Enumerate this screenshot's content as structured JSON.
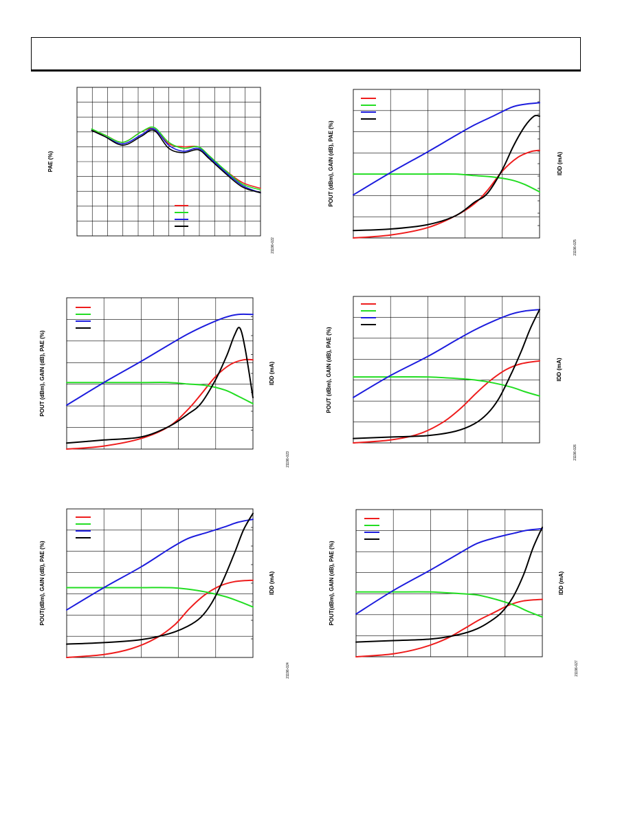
{
  "colors": {
    "red": "#ee1c1c",
    "green": "#22dd22",
    "blue": "#1c1cdd",
    "black": "#000000",
    "grid": "#000000"
  },
  "chart_data": [
    {
      "type": "line",
      "ylabel": "PAE (%)",
      "figure_id": "21196-022",
      "grid": true,
      "legend_placement": "bottom-right",
      "legend_colors": [
        "red",
        "green",
        "blue",
        "black"
      ],
      "xlim": [
        0,
        1
      ],
      "ylim": [
        0,
        1
      ],
      "series": [
        {
          "color": "red",
          "x": [
            0.08,
            0.15,
            0.25,
            0.35,
            0.42,
            0.5,
            0.58,
            0.66,
            0.72,
            0.8,
            0.9,
            1.0
          ],
          "y": [
            0.71,
            0.68,
            0.63,
            0.7,
            0.72,
            0.62,
            0.6,
            0.6,
            0.54,
            0.45,
            0.36,
            0.32
          ]
        },
        {
          "color": "green",
          "x": [
            0.08,
            0.15,
            0.25,
            0.35,
            0.42,
            0.5,
            0.58,
            0.66,
            0.72,
            0.8,
            0.9,
            1.0
          ],
          "y": [
            0.72,
            0.68,
            0.63,
            0.7,
            0.73,
            0.63,
            0.59,
            0.6,
            0.54,
            0.45,
            0.35,
            0.31
          ]
        },
        {
          "color": "blue",
          "x": [
            0.08,
            0.15,
            0.25,
            0.35,
            0.42,
            0.5,
            0.58,
            0.66,
            0.72,
            0.8,
            0.9,
            1.0
          ],
          "y": [
            0.71,
            0.67,
            0.62,
            0.68,
            0.72,
            0.61,
            0.57,
            0.59,
            0.53,
            0.44,
            0.34,
            0.29
          ]
        },
        {
          "color": "black",
          "x": [
            0.08,
            0.15,
            0.25,
            0.35,
            0.42,
            0.5,
            0.58,
            0.66,
            0.72,
            0.8,
            0.9,
            1.0
          ],
          "y": [
            0.71,
            0.67,
            0.61,
            0.67,
            0.71,
            0.59,
            0.56,
            0.58,
            0.52,
            0.43,
            0.33,
            0.29
          ]
        }
      ]
    },
    {
      "type": "line",
      "ylabel": "POUT (dBm), GAIN (dB), PAE (%)",
      "y2label": "IDD (mA)",
      "figure_id": "21196-025",
      "grid": true,
      "legend_placement": "top-left",
      "legend_colors": [
        "red",
        "green",
        "blue",
        "black"
      ],
      "xlim": [
        0,
        1
      ],
      "ylim": [
        0,
        1
      ],
      "series": [
        {
          "color": "red",
          "x": [
            0,
            0.2,
            0.4,
            0.55,
            0.65,
            0.72,
            0.8,
            0.88,
            0.95,
            1.0
          ],
          "y": [
            0.0,
            0.02,
            0.07,
            0.15,
            0.23,
            0.32,
            0.45,
            0.54,
            0.58,
            0.59
          ]
        },
        {
          "color": "green",
          "x": [
            0,
            0.2,
            0.4,
            0.55,
            0.65,
            0.75,
            0.85,
            0.92,
            1.0
          ],
          "y": [
            0.43,
            0.43,
            0.43,
            0.43,
            0.42,
            0.41,
            0.39,
            0.36,
            0.31
          ]
        },
        {
          "color": "blue",
          "x": [
            0,
            0.2,
            0.4,
            0.55,
            0.65,
            0.75,
            0.85,
            0.92,
            1.0
          ],
          "y": [
            0.29,
            0.44,
            0.58,
            0.69,
            0.76,
            0.82,
            0.88,
            0.9,
            0.91
          ]
        },
        {
          "color": "black",
          "x": [
            0,
            0.2,
            0.4,
            0.55,
            0.65,
            0.72,
            0.8,
            0.86,
            0.92,
            0.97,
            1.0
          ],
          "y": [
            0.05,
            0.06,
            0.09,
            0.15,
            0.24,
            0.3,
            0.46,
            0.62,
            0.75,
            0.82,
            0.82
          ]
        }
      ]
    },
    {
      "type": "line",
      "ylabel": "POUT (dBm), GAIN (dB), PAE (%)",
      "y2label": "IDD (mA)",
      "figure_id": "21196-023",
      "grid": true,
      "legend_placement": "top-left",
      "legend_colors": [
        "red",
        "green",
        "blue",
        "black"
      ],
      "xlim": [
        0,
        1
      ],
      "ylim": [
        0,
        1
      ],
      "series": [
        {
          "color": "red",
          "x": [
            0,
            0.2,
            0.4,
            0.55,
            0.65,
            0.72,
            0.8,
            0.88,
            0.95,
            1.0
          ],
          "y": [
            0.0,
            0.02,
            0.07,
            0.15,
            0.26,
            0.36,
            0.48,
            0.56,
            0.59,
            0.59
          ]
        },
        {
          "color": "green",
          "x": [
            0,
            0.2,
            0.4,
            0.55,
            0.65,
            0.75,
            0.85,
            0.92,
            1.0
          ],
          "y": [
            0.44,
            0.44,
            0.44,
            0.44,
            0.43,
            0.42,
            0.39,
            0.35,
            0.3
          ]
        },
        {
          "color": "blue",
          "x": [
            0,
            0.2,
            0.4,
            0.55,
            0.65,
            0.75,
            0.85,
            0.92,
            1.0
          ],
          "y": [
            0.29,
            0.44,
            0.58,
            0.69,
            0.76,
            0.82,
            0.87,
            0.89,
            0.89
          ]
        },
        {
          "color": "black",
          "x": [
            0,
            0.2,
            0.4,
            0.55,
            0.65,
            0.72,
            0.8,
            0.86,
            0.9,
            0.93,
            0.96,
            1.0
          ],
          "y": [
            0.04,
            0.06,
            0.08,
            0.15,
            0.23,
            0.3,
            0.46,
            0.62,
            0.75,
            0.8,
            0.65,
            0.34
          ]
        }
      ]
    },
    {
      "type": "line",
      "ylabel": "POUT (dBm), GAIN (dB), PAE (%)",
      "y2label": "IDD (mA)",
      "figure_id": "21196-026",
      "grid": true,
      "legend_placement": "top-left",
      "legend_colors": [
        "red",
        "green",
        "blue",
        "black"
      ],
      "xlim": [
        0,
        1
      ],
      "ylim": [
        0,
        1
      ],
      "series": [
        {
          "color": "red",
          "x": [
            0,
            0.2,
            0.35,
            0.48,
            0.58,
            0.66,
            0.74,
            0.82,
            0.9,
            1.0
          ],
          "y": [
            0.0,
            0.02,
            0.06,
            0.14,
            0.24,
            0.34,
            0.43,
            0.5,
            0.54,
            0.56
          ]
        },
        {
          "color": "green",
          "x": [
            0,
            0.2,
            0.4,
            0.55,
            0.65,
            0.75,
            0.85,
            0.92,
            1.0
          ],
          "y": [
            0.45,
            0.45,
            0.45,
            0.44,
            0.43,
            0.41,
            0.38,
            0.35,
            0.32
          ]
        },
        {
          "color": "blue",
          "x": [
            0,
            0.2,
            0.4,
            0.55,
            0.65,
            0.75,
            0.85,
            0.92,
            1.0
          ],
          "y": [
            0.31,
            0.46,
            0.59,
            0.7,
            0.77,
            0.83,
            0.88,
            0.9,
            0.91
          ]
        },
        {
          "color": "black",
          "x": [
            0,
            0.2,
            0.4,
            0.55,
            0.65,
            0.72,
            0.78,
            0.84,
            0.9,
            0.95,
            1.0
          ],
          "y": [
            0.03,
            0.04,
            0.05,
            0.08,
            0.13,
            0.2,
            0.3,
            0.45,
            0.62,
            0.78,
            0.91
          ]
        }
      ]
    },
    {
      "type": "line",
      "ylabel": "POUT(dBm), GAIN (dB), PAE (%)",
      "y2label": "IDD (mA)",
      "figure_id": "21196-024",
      "grid": true,
      "legend_placement": "top-left",
      "legend_colors": [
        "red",
        "green",
        "blue",
        "black"
      ],
      "xlim": [
        0,
        1
      ],
      "ylim": [
        0,
        1
      ],
      "series": [
        {
          "color": "red",
          "x": [
            0,
            0.2,
            0.35,
            0.48,
            0.58,
            0.66,
            0.74,
            0.82,
            0.9,
            1.0
          ],
          "y": [
            0.0,
            0.02,
            0.06,
            0.13,
            0.22,
            0.33,
            0.42,
            0.48,
            0.51,
            0.52
          ]
        },
        {
          "color": "green",
          "x": [
            0,
            0.2,
            0.4,
            0.55,
            0.65,
            0.75,
            0.85,
            0.92,
            1.0
          ],
          "y": [
            0.47,
            0.47,
            0.47,
            0.47,
            0.46,
            0.44,
            0.41,
            0.38,
            0.34
          ]
        },
        {
          "color": "blue",
          "x": [
            0,
            0.2,
            0.4,
            0.55,
            0.65,
            0.75,
            0.85,
            0.92,
            1.0
          ],
          "y": [
            0.32,
            0.47,
            0.61,
            0.73,
            0.8,
            0.84,
            0.88,
            0.91,
            0.93
          ]
        },
        {
          "color": "black",
          "x": [
            0,
            0.2,
            0.4,
            0.55,
            0.65,
            0.72,
            0.78,
            0.84,
            0.9,
            0.95,
            1.0
          ],
          "y": [
            0.09,
            0.1,
            0.12,
            0.16,
            0.21,
            0.27,
            0.37,
            0.52,
            0.7,
            0.86,
            0.97
          ]
        }
      ]
    },
    {
      "type": "line",
      "ylabel": "POUT(dBm), GAIN (dB), PAE (%)",
      "y2label": "IDD (mA)",
      "figure_id": "21196-027",
      "grid": true,
      "legend_placement": "top-left",
      "legend_colors": [
        "red",
        "green",
        "blue",
        "black"
      ],
      "xlim": [
        0,
        1
      ],
      "ylim": [
        0,
        1
      ],
      "series": [
        {
          "color": "red",
          "x": [
            0,
            0.2,
            0.35,
            0.48,
            0.58,
            0.66,
            0.74,
            0.82,
            0.9,
            1.0
          ],
          "y": [
            0.0,
            0.02,
            0.06,
            0.12,
            0.19,
            0.25,
            0.3,
            0.35,
            0.38,
            0.39
          ]
        },
        {
          "color": "green",
          "x": [
            0,
            0.2,
            0.4,
            0.55,
            0.65,
            0.75,
            0.85,
            0.92,
            1.0
          ],
          "y": [
            0.44,
            0.44,
            0.44,
            0.43,
            0.42,
            0.39,
            0.35,
            0.31,
            0.27
          ]
        },
        {
          "color": "blue",
          "x": [
            0,
            0.2,
            0.4,
            0.55,
            0.65,
            0.75,
            0.85,
            0.92,
            1.0
          ],
          "y": [
            0.29,
            0.45,
            0.59,
            0.7,
            0.77,
            0.81,
            0.84,
            0.86,
            0.87
          ]
        },
        {
          "color": "black",
          "x": [
            0,
            0.2,
            0.4,
            0.55,
            0.65,
            0.72,
            0.78,
            0.84,
            0.9,
            0.95,
            1.0
          ],
          "y": [
            0.1,
            0.11,
            0.12,
            0.15,
            0.19,
            0.24,
            0.3,
            0.4,
            0.56,
            0.74,
            0.88
          ]
        }
      ]
    }
  ]
}
